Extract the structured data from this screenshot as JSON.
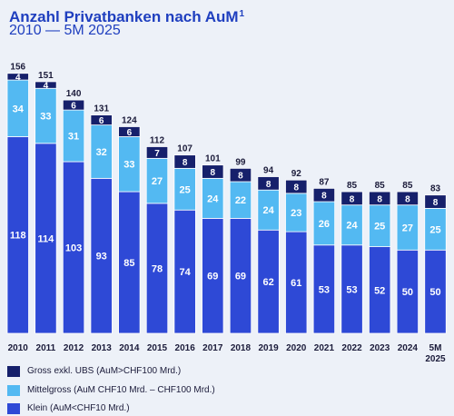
{
  "header": {
    "title": "Anzahl Privatbanken nach AuM",
    "title_superscript": "1",
    "subtitle": "2010 — 5M 2025"
  },
  "colors": {
    "gross": "#16206b",
    "mittelgross": "#53b9f2",
    "klein": "#2e49d6",
    "text_dark": "#1b1b3a",
    "title": "#1f3fbf"
  },
  "chart_data": {
    "type": "bar",
    "stacked": true,
    "title": "Anzahl Privatbanken nach AuM¹",
    "subtitle": "2010 — 5M 2025",
    "categories": [
      "2010",
      "2011",
      "2012",
      "2013",
      "2014",
      "2015",
      "2016",
      "2017",
      "2018",
      "2019",
      "2020",
      "2021",
      "2022",
      "2023",
      "2024",
      "5M 2025"
    ],
    "series": [
      {
        "name": "Klein (AuM<CHF10 Mrd.)",
        "color": "#2e49d6",
        "values": [
          118,
          114,
          103,
          93,
          85,
          78,
          74,
          69,
          69,
          62,
          61,
          53,
          53,
          52,
          50,
          50
        ]
      },
      {
        "name": "Mittelgross (AuM CHF10 Mrd. – CHF100 Mrd.)",
        "color": "#53b9f2",
        "values": [
          34,
          33,
          31,
          32,
          33,
          27,
          25,
          24,
          22,
          24,
          23,
          26,
          24,
          25,
          27,
          25
        ]
      },
      {
        "name": "Gross exkl. UBS (AuM>CHF100 Mrd.)",
        "color": "#16206b",
        "values": [
          4,
          4,
          6,
          6,
          6,
          7,
          8,
          8,
          8,
          8,
          8,
          8,
          8,
          8,
          8,
          8
        ]
      }
    ],
    "totals": [
      156,
      151,
      140,
      131,
      124,
      112,
      107,
      101,
      99,
      94,
      92,
      87,
      85,
      85,
      85,
      83
    ],
    "ylim": [
      0,
      156
    ],
    "grid": false,
    "legend_position": "bottom-left"
  },
  "legend": [
    {
      "label": "Gross exkl. UBS (AuM>CHF100 Mrd.)",
      "color": "#16206b"
    },
    {
      "label": "Mittelgross (AuM CHF10 Mrd. – CHF100 Mrd.)",
      "color": "#53b9f2"
    },
    {
      "label": "Klein (AuM<CHF10 Mrd.)",
      "color": "#2e49d6"
    }
  ]
}
